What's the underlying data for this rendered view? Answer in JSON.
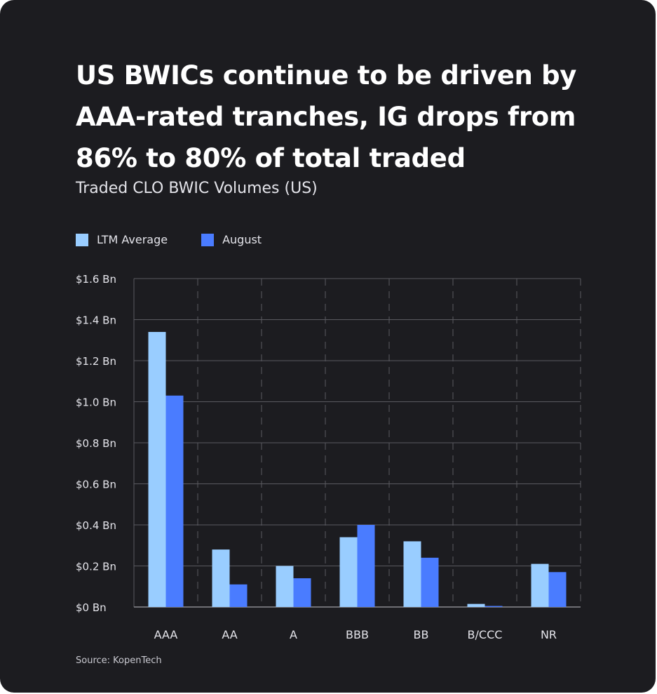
{
  "title": "US BWICs continue to be driven by AAA-rated tranches, IG drops from 86% to 80% of total traded",
  "subtitle": "Traded CLO BWIC Volumes (US)",
  "source": "Source: KopenTech",
  "colors": {
    "background": "#1c1c20",
    "ltm": "#99cdff",
    "august": "#4a7cff",
    "grid": "#5a5a60"
  },
  "legend": [
    {
      "label": "LTM Average",
      "color": "#99cdff"
    },
    {
      "label": "August",
      "color": "#4a7cff"
    }
  ],
  "chart_data": {
    "type": "bar",
    "categories": [
      "AAA",
      "AA",
      "A",
      "BBB",
      "BB",
      "B/CCC",
      "NR"
    ],
    "series": [
      {
        "name": "LTM Average",
        "values": [
          1.34,
          0.28,
          0.2,
          0.34,
          0.32,
          0.015,
          0.21
        ]
      },
      {
        "name": "August",
        "values": [
          1.03,
          0.11,
          0.14,
          0.4,
          0.24,
          0.005,
          0.17
        ]
      }
    ],
    "yticks": [
      0,
      0.2,
      0.4,
      0.6,
      0.8,
      1.0,
      1.2,
      1.4,
      1.6
    ],
    "ytick_labels": [
      "$0 Bn",
      "$0.2 Bn",
      "$0.4 Bn",
      "$0.6 Bn",
      "$0.8 Bn",
      "$1.0 Bn",
      "$1.2 Bn",
      "$1.4 Bn",
      "$1.6 Bn"
    ],
    "ylim": [
      0,
      1.6
    ],
    "xlabel": "",
    "ylabel": "",
    "grid": true,
    "legend_position": "top-left"
  }
}
